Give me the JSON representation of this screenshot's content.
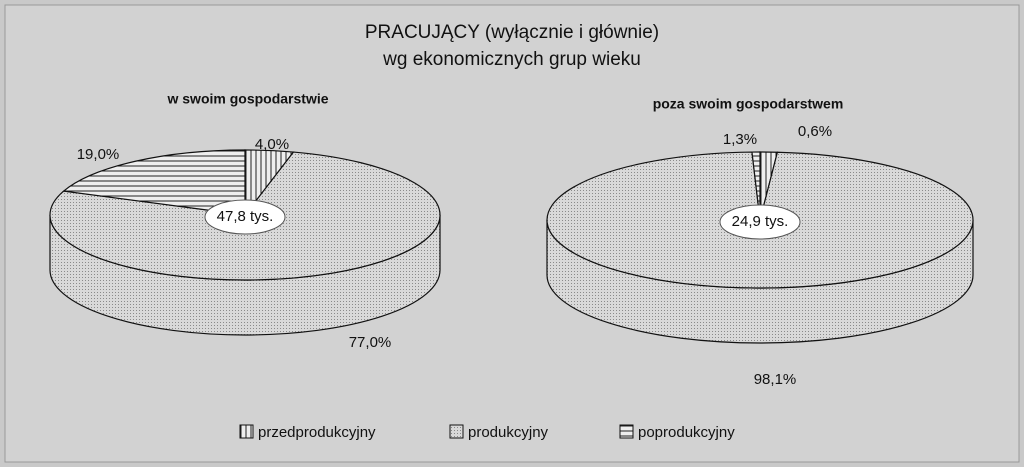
{
  "title": "PRACUJĄCY (wyłącznie i głównie)",
  "subtitle": "wg ekonomicznych grup wieku",
  "chart_data": [
    {
      "type": "pie",
      "title": "w swoim gospodarstwie",
      "center_label": "47,8 tys.",
      "categories": [
        "przedprodukcyjny",
        "produkcyjny",
        "poprodukcyjny"
      ],
      "values": [
        4.0,
        77.0,
        19.0
      ],
      "value_labels": [
        "4,0%",
        "77,0%",
        "19,0%"
      ]
    },
    {
      "type": "pie",
      "title": "poza swoim gospodarstwem",
      "center_label": "24,9 tys.",
      "categories": [
        "przedprodukcyjny",
        "produkcyjny",
        "poprodukcyjny"
      ],
      "values": [
        1.3,
        98.1,
        0.6
      ],
      "value_labels": [
        "1,3%",
        "98,1%",
        "0,6%"
      ]
    }
  ]
}
